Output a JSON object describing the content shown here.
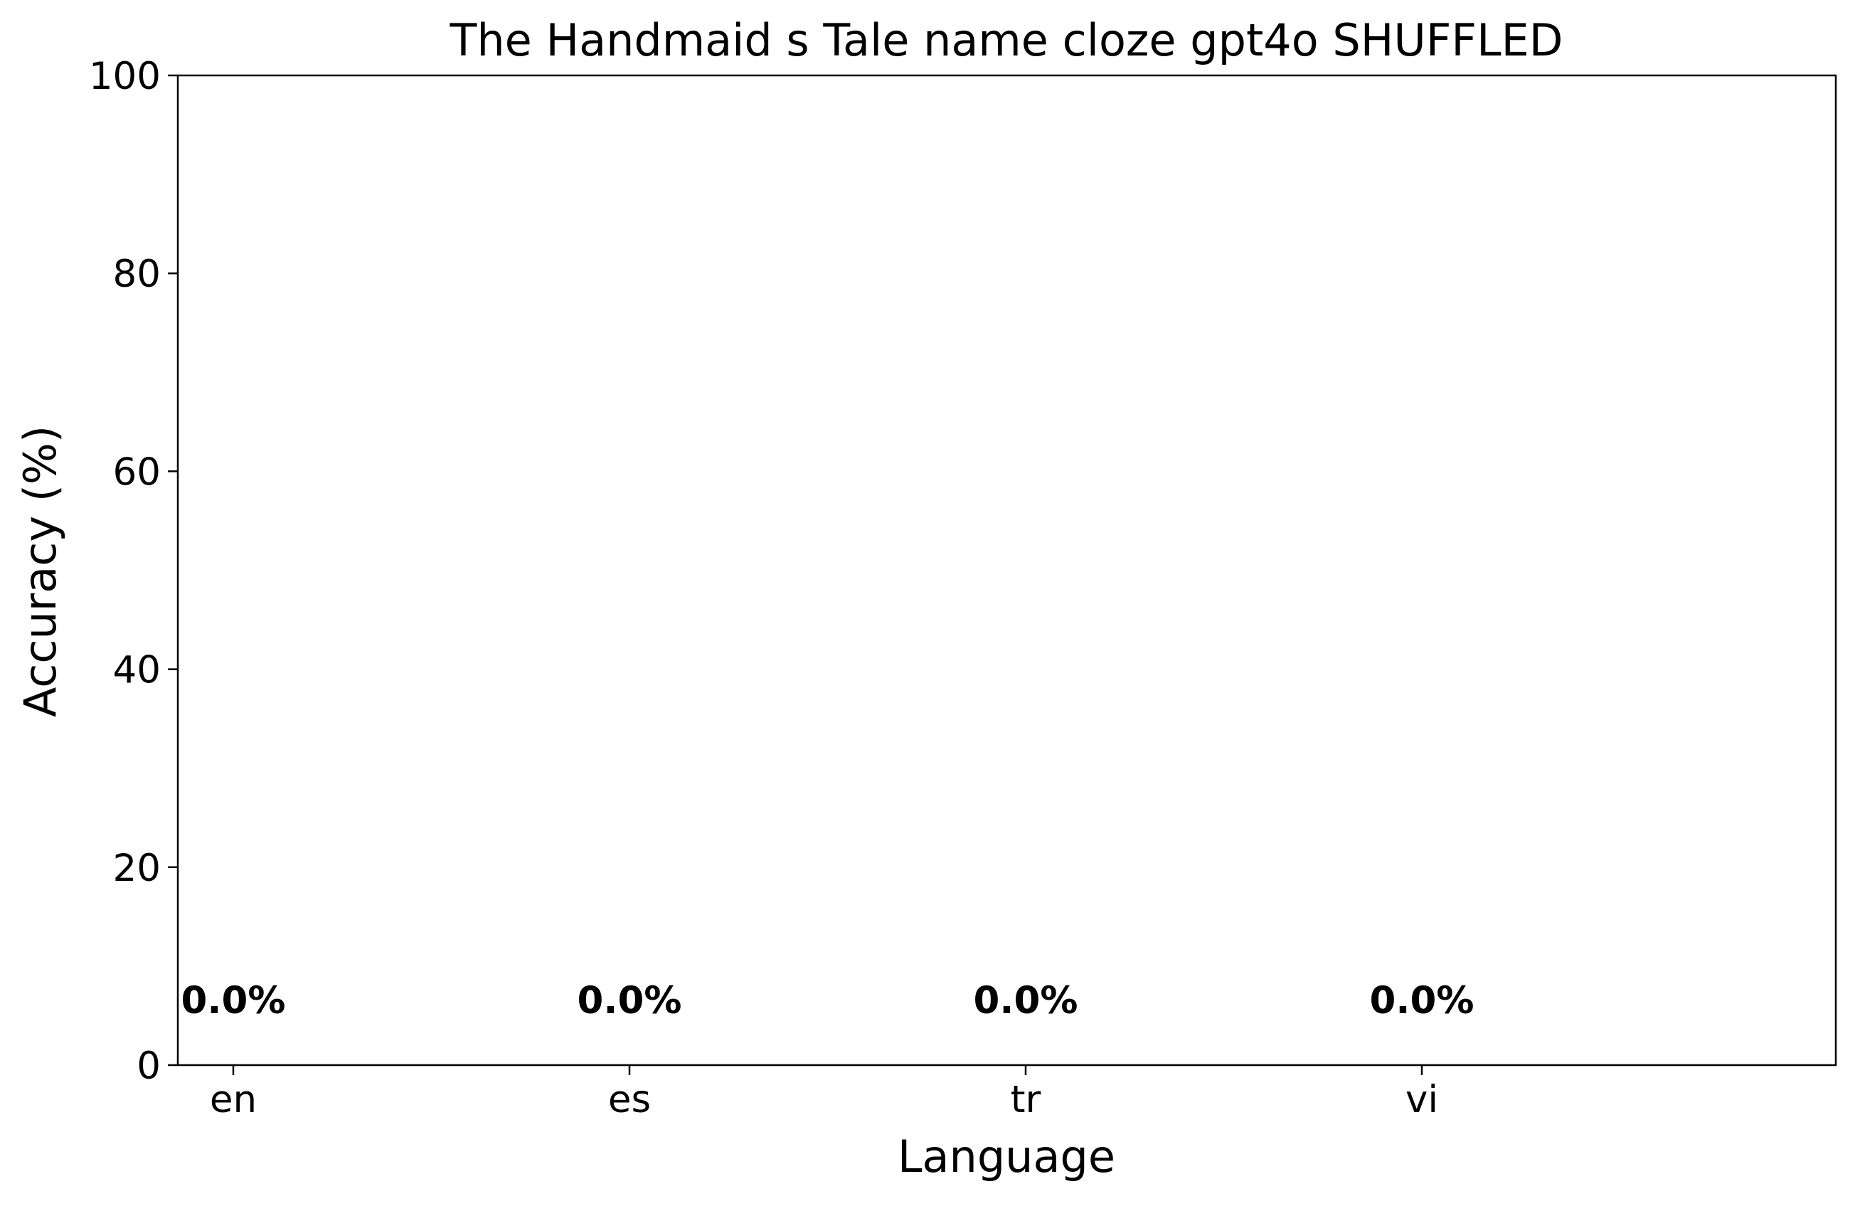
{
  "chart_data": {
    "type": "bar",
    "title": "The Handmaid s Tale name cloze gpt4o SHUFFLED",
    "xlabel": "Language",
    "ylabel": "Accuracy (%)",
    "categories": [
      "en",
      "es",
      "tr",
      "vi"
    ],
    "values": [
      0.0,
      0.0,
      0.0,
      0.0
    ],
    "data_labels": [
      "0.0%",
      "0.0%",
      "0.0%",
      "0.0%"
    ],
    "ylim": [
      0,
      100
    ],
    "yticks": [
      0,
      20,
      40,
      60,
      80,
      100
    ],
    "ytick_labels": [
      "0",
      "20",
      "40",
      "60",
      "80",
      "100"
    ],
    "grid": false,
    "legend": "none",
    "bar_color": "#1f77b4"
  }
}
